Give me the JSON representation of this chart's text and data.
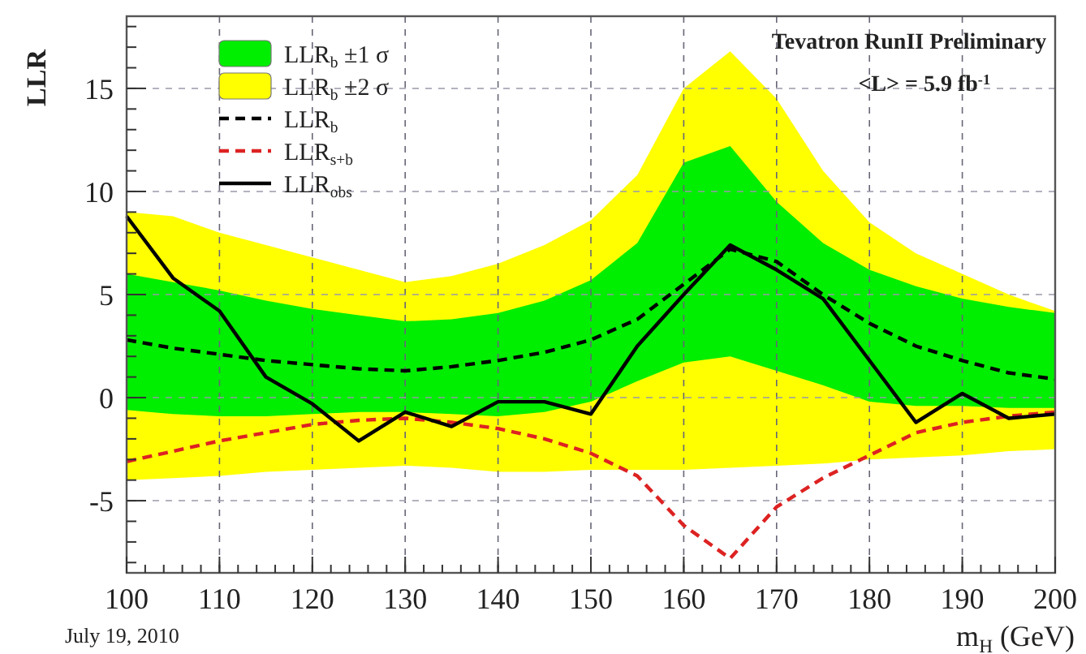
{
  "chart_data": {
    "type": "line",
    "xlabel": "m$_{H}$ (GeV)",
    "ylabel": "LLR",
    "x": [
      100,
      105,
      110,
      115,
      120,
      125,
      130,
      135,
      140,
      145,
      150,
      155,
      160,
      165,
      170,
      175,
      180,
      185,
      190,
      195,
      200
    ],
    "xlim": [
      100,
      200
    ],
    "xticks": [
      100,
      110,
      120,
      130,
      140,
      150,
      160,
      170,
      180,
      190,
      200
    ],
    "ylim": [
      -8.5,
      18.5
    ],
    "yticks": [
      -5,
      0,
      5,
      10,
      15
    ],
    "grid": true,
    "legend": "top left",
    "series": [
      {
        "name": "LLR$_{b}$ ±1 σ",
        "color": "#00ee00",
        "values": [
          null,
          null,
          null,
          null,
          null,
          null,
          null,
          null,
          null,
          null,
          null,
          null,
          null,
          null,
          null,
          null,
          null,
          null,
          null,
          null,
          null
        ],
        "lower": [
          -0.6,
          -0.8,
          -0.9,
          -0.9,
          -0.8,
          -0.7,
          -0.7,
          -0.8,
          -0.9,
          -0.7,
          -0.2,
          0.8,
          1.7,
          2.0,
          1.3,
          0.6,
          -0.2,
          -0.4,
          -0.4,
          -0.5,
          -0.5
        ],
        "upper": [
          6.0,
          5.6,
          5.2,
          4.7,
          4.3,
          4.0,
          3.7,
          3.8,
          4.1,
          4.7,
          5.7,
          7.5,
          11.4,
          12.2,
          9.5,
          7.5,
          6.2,
          5.4,
          4.8,
          4.4,
          4.1
        ]
      },
      {
        "name": "LLR$_{b}$ ±2 σ",
        "color": "#ffff00",
        "values": [
          null,
          null,
          null,
          null,
          null,
          null,
          null,
          null,
          null,
          null,
          null,
          null,
          null,
          null,
          null,
          null,
          null,
          null,
          null,
          null,
          null
        ],
        "lower": [
          -4.0,
          -3.9,
          -3.8,
          -3.6,
          -3.5,
          -3.4,
          -3.3,
          -3.4,
          -3.6,
          -3.6,
          -3.5,
          -3.5,
          -3.5,
          -3.4,
          -3.3,
          -3.2,
          -3.0,
          -2.9,
          -2.8,
          -2.6,
          -2.5
        ],
        "upper": [
          9.0,
          8.8,
          8.0,
          7.4,
          6.8,
          6.2,
          5.6,
          5.9,
          6.5,
          7.4,
          8.6,
          10.8,
          15.0,
          16.8,
          14.5,
          11.0,
          8.5,
          7.0,
          6.0,
          5.0,
          4.2
        ]
      },
      {
        "name": "LLR$_{b}$",
        "color": "#000000",
        "line_style": "dashed",
        "values": [
          2.8,
          2.4,
          2.1,
          1.8,
          1.6,
          1.4,
          1.3,
          1.5,
          1.8,
          2.2,
          2.8,
          3.8,
          5.5,
          7.2,
          6.6,
          5.0,
          3.6,
          2.5,
          1.8,
          1.2,
          0.9
        ]
      },
      {
        "name": "LLR$_{s+b}$",
        "color": "#dd2222",
        "line_style": "dashed",
        "values": [
          -3.1,
          -2.6,
          -2.1,
          -1.7,
          -1.3,
          -1.1,
          -1.0,
          -1.2,
          -1.5,
          -2.0,
          -2.7,
          -3.8,
          -6.2,
          -7.8,
          -5.3,
          -3.9,
          -2.8,
          -1.7,
          -1.2,
          -0.9,
          -0.7
        ]
      },
      {
        "name": "LLR$_{obs}$",
        "color": "#000000",
        "line_style": "solid",
        "values": [
          8.8,
          5.8,
          4.2,
          1.0,
          -0.3,
          -2.1,
          -0.7,
          -1.4,
          -0.2,
          -0.2,
          -0.8,
          2.5,
          5.0,
          7.4,
          6.2,
          4.8,
          1.8,
          -1.2,
          0.2,
          -1.0,
          -0.8
        ]
      }
    ],
    "annotations": [
      "Tevatron RunII Preliminary",
      "<L> = 5.9 fb$^{-1}$",
      "July 19, 2010"
    ]
  }
}
